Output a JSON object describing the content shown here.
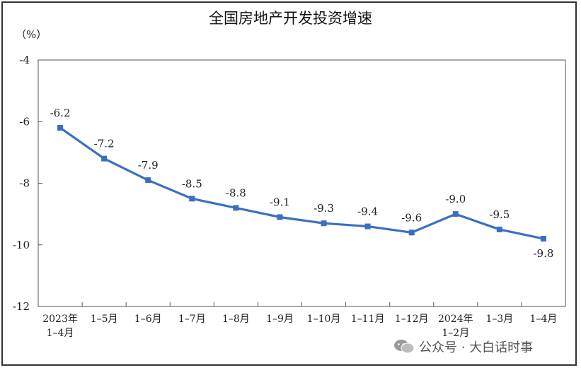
{
  "chart_data": {
    "type": "line",
    "title": "全国房地产开发投资增速",
    "ylabel": "（%）",
    "ylim": [
      -12,
      -4
    ],
    "yticks": [
      -4,
      -6,
      -8,
      -10,
      -12
    ],
    "categories": [
      [
        "2023年",
        "1–4月"
      ],
      [
        "1–5月"
      ],
      [
        "1–6月"
      ],
      [
        "1–7月"
      ],
      [
        "1–8月"
      ],
      [
        "1–9月"
      ],
      [
        "1–10月"
      ],
      [
        "1–11月"
      ],
      [
        "1–12月"
      ],
      [
        "2024年",
        "1–2月"
      ],
      [
        "1–3月"
      ],
      [
        "1–4月"
      ]
    ],
    "values": [
      -6.2,
      -7.2,
      -7.9,
      -8.5,
      -8.8,
      -9.1,
      -9.3,
      -9.4,
      -9.6,
      -9.0,
      -9.5,
      -9.8
    ],
    "labels": [
      "-6.2",
      "-7.2",
      "-7.9",
      "-8.5",
      "-8.8",
      "-9.1",
      "-9.3",
      "-9.4",
      "-9.6",
      "-9.0",
      "-9.5",
      "-9.8"
    ],
    "line_color": "#3a6fc0",
    "grid": false
  },
  "watermark": {
    "text": "公众号 · 大白话时事"
  }
}
